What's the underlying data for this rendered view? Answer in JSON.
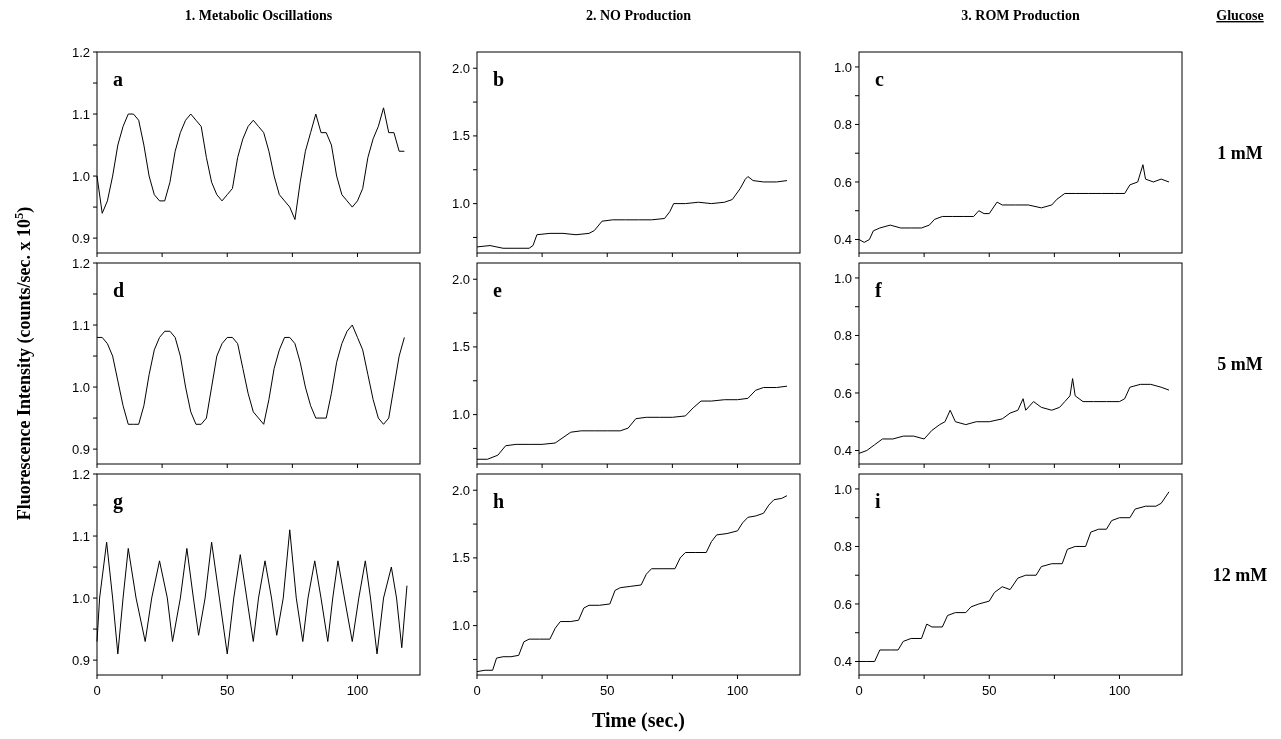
{
  "chart_data": [
    {
      "type": "line",
      "title": "1. Metabolic Oscillations",
      "annotations": [
        "a"
      ],
      "tick_labels": "y",
      "xlim": [
        0,
        124
      ],
      "xticks": [
        {
          "value": 0,
          "label": null
        },
        {
          "value": 25,
          "label": null
        },
        {
          "value": 50,
          "label": null
        },
        {
          "value": 75,
          "label": null
        },
        {
          "value": 100,
          "label": null
        }
      ],
      "ylim": [
        0.876,
        1.2
      ],
      "yticks": [
        {
          "value": 0.9,
          "label": "0.9"
        },
        {
          "value": 0.95,
          "label": null
        },
        {
          "value": 1.0,
          "label": "1.0"
        },
        {
          "value": 1.05,
          "label": null
        },
        {
          "value": 1.1,
          "label": "1.1"
        },
        {
          "value": 1.15,
          "label": null
        },
        {
          "value": 1.2,
          "label": "1.2"
        }
      ],
      "x": [
        0,
        2,
        4,
        6,
        8,
        10,
        12,
        14,
        16,
        18,
        20,
        22,
        24,
        26,
        28,
        30,
        32,
        34,
        36,
        38,
        40,
        42,
        44,
        46,
        48,
        50,
        52,
        54,
        56,
        58,
        60,
        62,
        64,
        66,
        68,
        70,
        72,
        74,
        76,
        78,
        80,
        82,
        84,
        86,
        88,
        90,
        92,
        94,
        96,
        98,
        100,
        102,
        104,
        106,
        108,
        110,
        112,
        114,
        116,
        118
      ],
      "series": [
        {
          "color": "#000000",
          "values": [
            1.0,
            0.94,
            0.96,
            1.0,
            1.05,
            1.08,
            1.1,
            1.1,
            1.09,
            1.05,
            1.0,
            0.97,
            0.96,
            0.96,
            0.99,
            1.04,
            1.07,
            1.09,
            1.1,
            1.09,
            1.08,
            1.03,
            0.99,
            0.97,
            0.96,
            0.97,
            0.98,
            1.03,
            1.06,
            1.08,
            1.09,
            1.08,
            1.07,
            1.04,
            1.0,
            0.97,
            0.96,
            0.95,
            0.93,
            0.99,
            1.04,
            1.07,
            1.1,
            1.07,
            1.07,
            1.05,
            1.0,
            0.97,
            0.96,
            0.95,
            0.96,
            0.98,
            1.03,
            1.06,
            1.08,
            1.11,
            1.07,
            1.07,
            1.04,
            1.04
          ]
        }
      ]
    },
    {
      "type": "line",
      "title": "2. NO Production",
      "annotations": [
        "b"
      ],
      "tick_labels": "y",
      "xlim": [
        0,
        124
      ],
      "xticks": [
        {
          "value": 0,
          "label": null
        },
        {
          "value": 25,
          "label": null
        },
        {
          "value": 50,
          "label": null
        },
        {
          "value": 75,
          "label": null
        },
        {
          "value": 100,
          "label": null
        }
      ],
      "ylim": [
        0.635,
        2.12
      ],
      "yticks": [
        {
          "value": 0.75,
          "label": null
        },
        {
          "value": 1.0,
          "label": "1.0"
        },
        {
          "value": 1.25,
          "label": null
        },
        {
          "value": 1.5,
          "label": "1.5"
        },
        {
          "value": 1.75,
          "label": null
        },
        {
          "value": 2.0,
          "label": "2.0"
        }
      ],
      "x": [
        0,
        5,
        10,
        15,
        20,
        21.5,
        23,
        28,
        33,
        38,
        43,
        45,
        48,
        52,
        57,
        62,
        67,
        72,
        74,
        75.5,
        80,
        85,
        90,
        95,
        98,
        101,
        103,
        104,
        106,
        110,
        115,
        119
      ],
      "series": [
        {
          "color": "#000000",
          "values": [
            0.68,
            0.69,
            0.67,
            0.67,
            0.67,
            0.69,
            0.77,
            0.78,
            0.78,
            0.77,
            0.78,
            0.8,
            0.87,
            0.88,
            0.88,
            0.88,
            0.88,
            0.89,
            0.94,
            1.0,
            1.0,
            1.01,
            1.0,
            1.01,
            1.03,
            1.11,
            1.18,
            1.2,
            1.17,
            1.16,
            1.16,
            1.17
          ]
        }
      ]
    },
    {
      "type": "line",
      "title": "3. ROM Production",
      "annotations": [
        "c",
        "1 mM",
        "Glucose"
      ],
      "tick_labels": "y",
      "xlim": [
        0,
        124
      ],
      "xticks": [
        {
          "value": 0,
          "label": null
        },
        {
          "value": 25,
          "label": null
        },
        {
          "value": 50,
          "label": null
        },
        {
          "value": 75,
          "label": null
        },
        {
          "value": 100,
          "label": null
        }
      ],
      "ylim": [
        0.353,
        1.052
      ],
      "yticks": [
        0.4,
        {
          "value": 0.5,
          "label": null
        },
        0.6,
        {
          "value": 0.7,
          "label": null
        },
        0.8,
        {
          "value": 0.9,
          "label": null
        },
        {
          "value": 1.0,
          "label": "1.0"
        }
      ],
      "x": [
        0,
        2,
        4,
        5.5,
        8,
        12,
        16,
        20,
        24,
        27,
        29,
        32,
        36,
        40,
        44,
        46,
        48,
        50,
        53,
        55,
        60,
        65,
        70,
        74,
        76,
        79,
        83,
        88,
        93,
        98,
        102,
        104,
        107,
        109,
        110,
        113,
        116,
        119
      ],
      "series": [
        {
          "color": "#000000",
          "values": [
            0.4,
            0.39,
            0.4,
            0.43,
            0.44,
            0.45,
            0.44,
            0.44,
            0.44,
            0.45,
            0.47,
            0.48,
            0.48,
            0.48,
            0.48,
            0.5,
            0.49,
            0.49,
            0.53,
            0.52,
            0.52,
            0.52,
            0.51,
            0.52,
            0.54,
            0.56,
            0.56,
            0.56,
            0.56,
            0.56,
            0.56,
            0.59,
            0.6,
            0.66,
            0.61,
            0.6,
            0.61,
            0.6
          ]
        }
      ]
    },
    {
      "type": "line",
      "ylabel": "Fluorescence Intensity (counts/sec. x 10$^{5}$)",
      "annotations": [
        "d"
      ],
      "tick_labels": "y",
      "xlim": [
        0,
        124
      ],
      "xticks": [
        {
          "value": 0,
          "label": null
        },
        {
          "value": 25,
          "label": null
        },
        {
          "value": 50,
          "label": null
        },
        {
          "value": 75,
          "label": null
        },
        {
          "value": 100,
          "label": null
        }
      ],
      "ylim": [
        0.876,
        1.2
      ],
      "yticks": [
        {
          "value": 0.9,
          "label": "0.9"
        },
        {
          "value": 0.95,
          "label": null
        },
        {
          "value": 1.0,
          "label": "1.0"
        },
        {
          "value": 1.05,
          "label": null
        },
        {
          "value": 1.1,
          "label": "1.1"
        },
        {
          "value": 1.15,
          "label": null
        },
        {
          "value": 1.2,
          "label": "1.2"
        }
      ],
      "x": [
        0,
        2,
        4,
        6,
        8,
        10,
        12,
        14,
        16,
        18,
        20,
        22,
        24,
        26,
        28,
        30,
        32,
        34,
        36,
        38,
        40,
        42,
        44,
        46,
        48,
        50,
        52,
        54,
        56,
        58,
        60,
        62,
        64,
        66,
        68,
        70,
        72,
        74,
        76,
        78,
        80,
        82,
        84,
        86,
        88,
        90,
        92,
        94,
        96,
        98,
        100,
        102,
        104,
        106,
        108,
        110,
        112,
        114,
        116,
        118
      ],
      "series": [
        {
          "color": "#000000",
          "values": [
            1.08,
            1.08,
            1.07,
            1.05,
            1.01,
            0.97,
            0.94,
            0.94,
            0.94,
            0.97,
            1.02,
            1.06,
            1.08,
            1.09,
            1.09,
            1.08,
            1.05,
            1.0,
            0.96,
            0.94,
            0.94,
            0.95,
            1.0,
            1.05,
            1.07,
            1.08,
            1.08,
            1.07,
            1.03,
            0.99,
            0.96,
            0.95,
            0.94,
            0.98,
            1.03,
            1.06,
            1.08,
            1.08,
            1.07,
            1.04,
            1.0,
            0.97,
            0.95,
            0.95,
            0.95,
            0.99,
            1.04,
            1.07,
            1.09,
            1.1,
            1.08,
            1.06,
            1.02,
            0.98,
            0.95,
            0.94,
            0.95,
            1.0,
            1.05,
            1.08
          ]
        }
      ]
    },
    {
      "type": "line",
      "annotations": [
        "e"
      ],
      "tick_labels": "y",
      "xlim": [
        0,
        124
      ],
      "xticks": [
        {
          "value": 0,
          "label": null
        },
        {
          "value": 25,
          "label": null
        },
        {
          "value": 50,
          "label": null
        },
        {
          "value": 75,
          "label": null
        },
        {
          "value": 100,
          "label": null
        }
      ],
      "ylim": [
        0.635,
        2.12
      ],
      "yticks": [
        {
          "value": 0.75,
          "label": null
        },
        {
          "value": 1.0,
          "label": "1.0"
        },
        {
          "value": 1.25,
          "label": null
        },
        {
          "value": 1.5,
          "label": "1.5"
        },
        {
          "value": 1.75,
          "label": null
        },
        {
          "value": 2.0,
          "label": "2.0"
        }
      ],
      "x": [
        0,
        4,
        8,
        11,
        15,
        20,
        25,
        30,
        33,
        36,
        40,
        45,
        50,
        55,
        58,
        61,
        65,
        70,
        75,
        80,
        83,
        86,
        90,
        95,
        100,
        104,
        107,
        110,
        115,
        119
      ],
      "series": [
        {
          "color": "#000000",
          "values": [
            0.67,
            0.67,
            0.7,
            0.77,
            0.78,
            0.78,
            0.78,
            0.79,
            0.83,
            0.87,
            0.88,
            0.88,
            0.88,
            0.88,
            0.9,
            0.97,
            0.98,
            0.98,
            0.98,
            0.99,
            1.05,
            1.1,
            1.1,
            1.11,
            1.11,
            1.12,
            1.18,
            1.2,
            1.2,
            1.21
          ]
        }
      ]
    },
    {
      "type": "line",
      "annotations": [
        "f",
        "5 mM"
      ],
      "tick_labels": "y",
      "xlim": [
        0,
        124
      ],
      "xticks": [
        {
          "value": 0,
          "label": null
        },
        {
          "value": 25,
          "label": null
        },
        {
          "value": 50,
          "label": null
        },
        {
          "value": 75,
          "label": null
        },
        {
          "value": 100,
          "label": null
        }
      ],
      "ylim": [
        0.353,
        1.052
      ],
      "yticks": [
        0.4,
        {
          "value": 0.5,
          "label": null
        },
        0.6,
        {
          "value": 0.7,
          "label": null
        },
        0.8,
        {
          "value": 0.9,
          "label": null
        },
        {
          "value": 1.0,
          "label": "1.0"
        }
      ],
      "x": [
        0,
        3,
        6,
        9,
        13,
        17,
        21,
        25,
        28,
        31,
        33,
        35,
        37,
        41,
        45,
        50,
        55,
        58,
        61,
        63,
        64,
        67,
        70,
        74,
        77,
        79,
        81,
        82,
        83,
        86,
        90,
        95,
        100,
        102,
        104,
        108,
        112,
        116,
        119
      ],
      "series": [
        {
          "color": "#000000",
          "values": [
            0.39,
            0.4,
            0.42,
            0.44,
            0.44,
            0.45,
            0.45,
            0.44,
            0.47,
            0.49,
            0.5,
            0.54,
            0.5,
            0.49,
            0.5,
            0.5,
            0.51,
            0.53,
            0.54,
            0.58,
            0.54,
            0.57,
            0.55,
            0.54,
            0.55,
            0.57,
            0.59,
            0.65,
            0.59,
            0.57,
            0.57,
            0.57,
            0.57,
            0.58,
            0.62,
            0.63,
            0.63,
            0.62,
            0.61
          ]
        }
      ]
    },
    {
      "type": "line",
      "annotations": [
        "g"
      ],
      "xlim": [
        0,
        124
      ],
      "xticks": [
        0,
        {
          "value": 25,
          "label": null
        },
        50,
        {
          "value": 75,
          "label": null
        },
        100
      ],
      "ylim": [
        0.876,
        1.2
      ],
      "yticks": [
        {
          "value": 0.9,
          "label": "0.9"
        },
        {
          "value": 0.95,
          "label": null
        },
        {
          "value": 1.0,
          "label": "1.0"
        },
        {
          "value": 1.05,
          "label": null
        },
        {
          "value": 1.1,
          "label": "1.1"
        },
        {
          "value": 1.15,
          "label": null
        },
        {
          "value": 1.2,
          "label": "1.2"
        }
      ],
      "x": [
        0,
        1,
        3.7,
        6,
        8,
        10,
        12,
        15,
        18.5,
        21,
        24,
        27,
        29,
        32,
        34.5,
        37,
        39,
        41.5,
        44,
        47,
        50,
        52.5,
        55,
        57.5,
        60,
        62,
        64.5,
        67,
        69,
        71.5,
        74,
        76.5,
        79,
        81,
        83.6,
        86,
        88.6,
        90.5,
        92.5,
        95,
        98,
        100.5,
        103,
        105,
        107.5,
        110,
        113,
        115,
        117,
        119
      ],
      "series": [
        {
          "color": "#000000",
          "values": [
            0.93,
            1.0,
            1.09,
            1.0,
            0.91,
            1.0,
            1.08,
            1.0,
            0.93,
            1.0,
            1.06,
            1.0,
            0.93,
            1.0,
            1.08,
            1.0,
            0.94,
            1.0,
            1.09,
            1.0,
            0.91,
            1.0,
            1.07,
            1.0,
            0.93,
            1.0,
            1.06,
            1.0,
            0.94,
            1.0,
            1.11,
            1.0,
            0.93,
            1.0,
            1.06,
            1.0,
            0.93,
            1.0,
            1.06,
            1.0,
            0.93,
            1.0,
            1.06,
            1.0,
            0.91,
            1.0,
            1.05,
            1.0,
            0.92,
            1.02
          ]
        }
      ]
    },
    {
      "type": "line",
      "xlabel": "Time (sec.)",
      "annotations": [
        "h"
      ],
      "xlim": [
        0,
        124
      ],
      "xticks": [
        0,
        {
          "value": 25,
          "label": null
        },
        50,
        {
          "value": 75,
          "label": null
        },
        100
      ],
      "ylim": [
        0.635,
        2.12
      ],
      "yticks": [
        {
          "value": 0.75,
          "label": null
        },
        {
          "value": 1.0,
          "label": "1.0"
        },
        {
          "value": 1.25,
          "label": null
        },
        {
          "value": 1.5,
          "label": "1.5"
        },
        {
          "value": 1.75,
          "label": null
        },
        {
          "value": 2.0,
          "label": "2.0"
        }
      ],
      "x": [
        0,
        3,
        6,
        7.5,
        10,
        13,
        16,
        18,
        20,
        24,
        28,
        30,
        32,
        36,
        39,
        41,
        43,
        47,
        51,
        53,
        55,
        59,
        63,
        65,
        67,
        71,
        76,
        78,
        80,
        84,
        88,
        90,
        92,
        96,
        100,
        102,
        104,
        107,
        110,
        112,
        114,
        117,
        119
      ],
      "series": [
        {
          "color": "#000000",
          "values": [
            0.66,
            0.67,
            0.67,
            0.76,
            0.77,
            0.77,
            0.78,
            0.88,
            0.9,
            0.9,
            0.9,
            0.98,
            1.03,
            1.03,
            1.04,
            1.13,
            1.15,
            1.15,
            1.16,
            1.26,
            1.28,
            1.29,
            1.3,
            1.38,
            1.42,
            1.42,
            1.42,
            1.5,
            1.54,
            1.54,
            1.54,
            1.62,
            1.67,
            1.68,
            1.7,
            1.76,
            1.8,
            1.81,
            1.83,
            1.89,
            1.93,
            1.94,
            1.96
          ]
        }
      ]
    },
    {
      "type": "line",
      "annotations": [
        "i",
        "12 mM"
      ],
      "xlim": [
        0,
        124
      ],
      "xticks": [
        0,
        {
          "value": 25,
          "label": null
        },
        50,
        {
          "value": 75,
          "label": null
        },
        100
      ],
      "ylim": [
        0.353,
        1.052
      ],
      "yticks": [
        0.4,
        {
          "value": 0.5,
          "label": null
        },
        0.6,
        {
          "value": 0.7,
          "label": null
        },
        0.8,
        {
          "value": 0.9,
          "label": null
        },
        {
          "value": 1.0,
          "label": "1.0"
        }
      ],
      "x": [
        0,
        3,
        6,
        8,
        12,
        15,
        17,
        20,
        24,
        26,
        28,
        32,
        34,
        37,
        41,
        43,
        46,
        50,
        52,
        55,
        58,
        61,
        64,
        68,
        70,
        74,
        78,
        80,
        83,
        87,
        89,
        92,
        95,
        97,
        100,
        104,
        106,
        110,
        114,
        116,
        119
      ],
      "series": [
        {
          "color": "#000000",
          "values": [
            0.4,
            0.4,
            0.4,
            0.44,
            0.44,
            0.44,
            0.47,
            0.48,
            0.48,
            0.53,
            0.52,
            0.52,
            0.56,
            0.57,
            0.57,
            0.59,
            0.6,
            0.61,
            0.64,
            0.66,
            0.65,
            0.69,
            0.7,
            0.7,
            0.73,
            0.74,
            0.74,
            0.79,
            0.8,
            0.8,
            0.85,
            0.86,
            0.86,
            0.89,
            0.9,
            0.9,
            0.93,
            0.94,
            0.94,
            0.95,
            0.99
          ]
        }
      ]
    }
  ]
}
